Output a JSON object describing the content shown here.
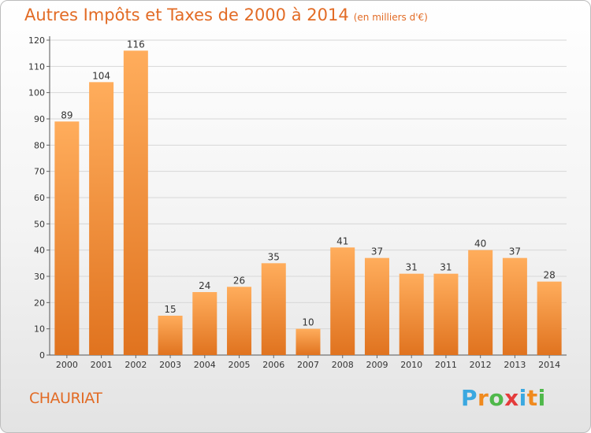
{
  "chart_data": {
    "type": "bar",
    "title": "Autres Impôts et Taxes de 2000 à 2014",
    "unit_note": "(en milliers d'€)",
    "categories": [
      "2000",
      "2001",
      "2002",
      "2003",
      "2004",
      "2005",
      "2006",
      "2007",
      "2008",
      "2009",
      "2010",
      "2011",
      "2012",
      "2013",
      "2014"
    ],
    "values": [
      89,
      104,
      116,
      15,
      24,
      26,
      35,
      10,
      41,
      37,
      31,
      31,
      40,
      37,
      28
    ],
    "ylim": [
      0,
      120
    ],
    "yticks": [
      0,
      10,
      20,
      30,
      40,
      50,
      60,
      70,
      80,
      90,
      100,
      110,
      120
    ],
    "grid": true,
    "colors": {
      "bar_light": "#ffad5c",
      "bar_dark": "#e0731f",
      "title": "#e26b25",
      "grid": "#d7d7d7"
    }
  },
  "commune": "CHAURIAT",
  "logo": {
    "letters": [
      "P",
      "r",
      "o",
      "x",
      "i",
      "t",
      "i"
    ],
    "colors": [
      "#3aa8e0",
      "#f08a1e",
      "#4fb84a",
      "#e43b3b",
      "#3aa8e0",
      "#f08a1e",
      "#4fb84a"
    ]
  }
}
